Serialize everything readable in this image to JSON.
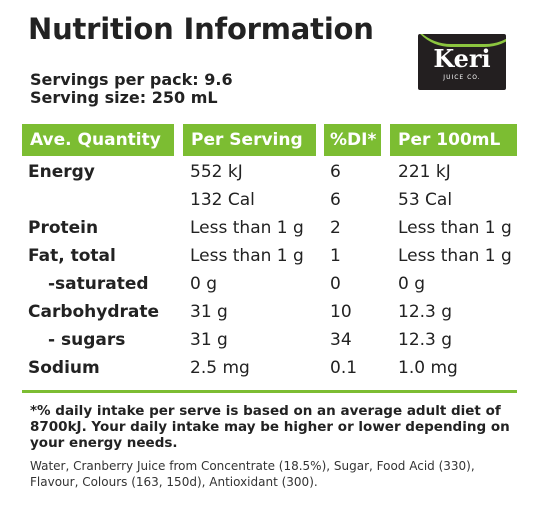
{
  "title": "Nutrition Information",
  "logo": {
    "brand": "Keri",
    "subtitle": "JUICE CO."
  },
  "servings_per_pack": "Servings per pack: 9.6",
  "serving_size": "Serving size: 250 mL",
  "table": {
    "headers": [
      "Ave. Quantity",
      "Per Serving",
      "%DI*",
      "Per 100mL"
    ],
    "rows": [
      {
        "label": "Energy",
        "per_serving": "552 kJ",
        "di": "6",
        "per_100ml": "221 kJ"
      },
      {
        "label": "",
        "per_serving": "132 Cal",
        "di": "6",
        "per_100ml": "53 Cal"
      },
      {
        "label": "Protein",
        "per_serving": "Less than 1 g",
        "di": "2",
        "per_100ml": "Less than 1 g"
      },
      {
        "label": "Fat, total",
        "per_serving": "Less than 1 g",
        "di": "1",
        "per_100ml": "Less than 1 g"
      },
      {
        "label": "-saturated",
        "per_serving": "0 g",
        "di": "0",
        "per_100ml": "0 g"
      },
      {
        "label": "Carbohydrate",
        "per_serving": "31 g",
        "di": "10",
        "per_100ml": "12.3 g"
      },
      {
        "label": "- sugars",
        "per_serving": "31 g",
        "di": "34",
        "per_100ml": "12.3 g"
      },
      {
        "label": "Sodium",
        "per_serving": "2.5 mg",
        "di": "0.1",
        "per_100ml": "1.0 mg"
      }
    ]
  },
  "footnote": "*% daily intake per serve is based on an average adult diet of 8700kJ. Your daily intake may be higher or lower depending on your energy needs.",
  "ingredients": "Water, Cranberry Juice from Concentrate (18.5%), Sugar, Food Acid (330), Flavour, Colours (163, 150d), Antioxidant (300).",
  "colors": {
    "accent_green": "#7cbd32",
    "logo_bg": "#231f20",
    "text": "#222222"
  }
}
